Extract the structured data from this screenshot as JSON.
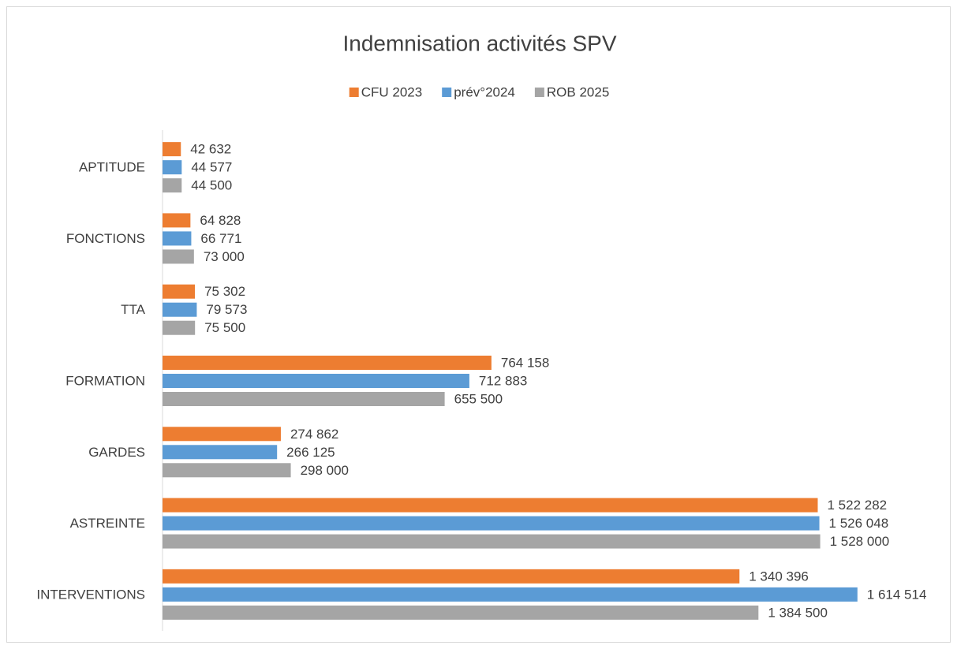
{
  "chart_data": {
    "type": "bar",
    "orientation": "horizontal",
    "title": "Indemnisation activités SPV",
    "categories": [
      "APTITUDE",
      "FONCTIONS",
      "TTA",
      "FORMATION",
      "GARDES",
      "ASTREINTE",
      "INTERVENTIONS"
    ],
    "series": [
      {
        "name": "CFU 2023",
        "color": "#ED7D31",
        "values": [
          42632,
          64828,
          75302,
          764158,
          274862,
          1522282,
          1340396
        ],
        "value_labels": [
          "42 632",
          "64 828",
          "75 302",
          "764 158",
          "274 862",
          "1 522 282",
          "1 340 396"
        ]
      },
      {
        "name": "prév°2024",
        "color": "#5B9BD5",
        "values": [
          44577,
          66771,
          79573,
          712883,
          266125,
          1526048,
          1614514
        ],
        "value_labels": [
          "44 577",
          "66 771",
          "79 573",
          "712 883",
          "266 125",
          "1 526 048",
          "1 614 514"
        ]
      },
      {
        "name": "ROB 2025",
        "color": "#A5A5A5",
        "values": [
          44500,
          73000,
          75500,
          655500,
          298000,
          1528000,
          1384500
        ],
        "value_labels": [
          "44 500",
          "73 000",
          "75 500",
          "655 500",
          "298 000",
          "1 528 000",
          "1 384 500"
        ]
      }
    ],
    "xlim": [
      0,
      1800000
    ]
  }
}
